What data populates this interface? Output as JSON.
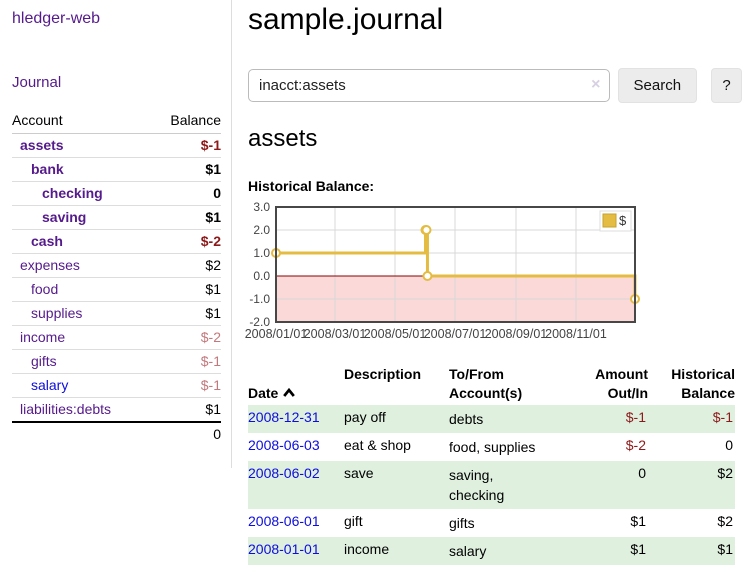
{
  "app": {
    "title": "hledger-web",
    "nav_journal": "Journal"
  },
  "colors": {
    "link_purple": "#551a8b",
    "link_blue": "#0d0ddd",
    "negative_strong": "#8c1a1a",
    "negative_muted": "#c1797d",
    "row_green": "#dff0df",
    "series_gold": "#e4bc42",
    "chart_border": "#474747",
    "grid": "#d8d8d8",
    "negative_fill": "#fbd9d9",
    "zero_line": "#8b0000"
  },
  "sidebar": {
    "columns": [
      "Account",
      "Balance"
    ],
    "accounts": [
      {
        "name": "assets",
        "indent": 1,
        "bold": true,
        "balance": "$-1",
        "balance_class": "neg-strong"
      },
      {
        "name": "bank",
        "indent": 2,
        "bold": true,
        "balance": "$1",
        "balance_class": "pos"
      },
      {
        "name": "checking",
        "indent": 3,
        "bold": true,
        "balance": "0",
        "balance_class": "pos"
      },
      {
        "name": "saving",
        "indent": 3,
        "bold": true,
        "balance": "$1",
        "balance_class": "pos"
      },
      {
        "name": "cash",
        "indent": 2,
        "bold": true,
        "balance": "$-2",
        "balance_class": "neg-strong"
      },
      {
        "name": "expenses",
        "indent": 1,
        "bold": false,
        "balance": "$2",
        "balance_class": "pos"
      },
      {
        "name": "food",
        "indent": 2,
        "bold": false,
        "balance": "$1",
        "balance_class": "pos"
      },
      {
        "name": "supplies",
        "indent": 2,
        "bold": false,
        "balance": "$1",
        "balance_class": "pos"
      },
      {
        "name": "income",
        "indent": 1,
        "bold": false,
        "balance": "$-2",
        "balance_class": "neg-muted"
      },
      {
        "name": "gifts",
        "indent": 2,
        "bold": false,
        "balance": "$-1",
        "balance_class": "neg-muted"
      },
      {
        "name": "salary",
        "indent": 2,
        "bold": false,
        "balance": "$-1",
        "balance_class": "neg-muted",
        "link": "blue"
      },
      {
        "name": "liabilities:debts",
        "indent": 1,
        "bold": false,
        "balance": "$1",
        "balance_class": "pos"
      }
    ],
    "total": "0"
  },
  "header": {
    "title": "sample.journal"
  },
  "search": {
    "value": "inacct:assets",
    "clear_icon": "×",
    "button": "Search",
    "help_button": "?"
  },
  "account_page": {
    "heading": "assets",
    "chart_label": "Historical Balance:"
  },
  "chart_data": {
    "type": "line",
    "step": true,
    "title": "Historical Balance",
    "series": [
      {
        "name": "$",
        "points": [
          [
            "2008-01-01",
            1
          ],
          [
            "2008-06-01",
            2
          ],
          [
            "2008-06-02",
            2
          ],
          [
            "2008-06-03",
            0
          ],
          [
            "2008-12-31",
            -1
          ]
        ]
      }
    ],
    "x_range": [
      "2008-01-01",
      "2008-12-31"
    ],
    "x_ticks": [
      {
        "date": "2008-01-01",
        "label": "2008/01/01"
      },
      {
        "date": "2008-03-01",
        "label": "2008/03/01"
      },
      {
        "date": "2008-05-01",
        "label": "2008/05/01"
      },
      {
        "date": "2008-07-01",
        "label": "2008/07/01"
      },
      {
        "date": "2008-09-01",
        "label": "2008/09/01"
      },
      {
        "date": "2008-11-01",
        "label": "2008/11/01"
      }
    ],
    "ylim": [
      -2,
      3
    ],
    "y_tick_step": 1,
    "y_tick_labels": [
      "3.0",
      "2.0",
      "1.0",
      "0.0",
      "-1.0",
      "-2.0"
    ],
    "grid": true,
    "legend": {
      "label": "$",
      "position": "top-right"
    },
    "negative_region_shaded": true
  },
  "register": {
    "headers": [
      "Date",
      "Description",
      "To/From\nAccount(s)",
      "Amount\nOut/In",
      "Historical\nBalance"
    ],
    "sort": {
      "column": "Date",
      "direction": "ascending"
    },
    "rows": [
      {
        "date": "2008-12-31",
        "description": "pay off",
        "accounts": "debts",
        "amount": "$-1",
        "balance": "$-1"
      },
      {
        "date": "2008-06-03",
        "description": "eat & shop",
        "accounts": "food, supplies",
        "amount": "$-2",
        "balance": "0"
      },
      {
        "date": "2008-06-02",
        "description": "save",
        "accounts": "saving, checking",
        "amount": "0",
        "balance": "$2"
      },
      {
        "date": "2008-06-01",
        "description": "gift",
        "accounts": "gifts",
        "amount": "$1",
        "balance": "$2"
      },
      {
        "date": "2008-01-01",
        "description": "income",
        "accounts": "salary",
        "amount": "$1",
        "balance": "$1"
      }
    ]
  }
}
